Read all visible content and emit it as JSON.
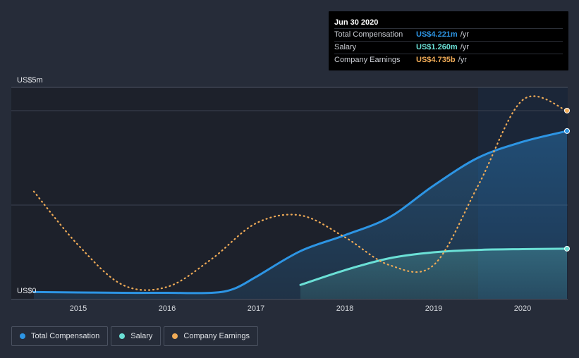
{
  "colors": {
    "background": "#262c39",
    "plot_dark": "#1d212b",
    "highlight": "#1b2638",
    "total_comp": "#2d95e4",
    "salary": "#6be0d6",
    "earnings": "#f0ab57",
    "grid": "#3a4150"
  },
  "tooltip": {
    "date": "Jun 30 2020",
    "rows": [
      {
        "label": "Total Compensation",
        "value": "US$4.221m",
        "unit": "/yr",
        "color": "#2d95e4"
      },
      {
        "label": "Salary",
        "value": "US$1.260m",
        "unit": "/yr",
        "color": "#6be0d6"
      },
      {
        "label": "Company Earnings",
        "value": "US$4.735b",
        "unit": "/yr",
        "color": "#f0ab57"
      }
    ]
  },
  "legend": [
    {
      "label": "Total Compensation",
      "color": "#2d95e4",
      "icon": "dot"
    },
    {
      "label": "Salary",
      "color": "#6be0d6",
      "icon": "dot"
    },
    {
      "label": "Company Earnings",
      "color": "#f0ab57",
      "icon": "dot"
    }
  ],
  "chart_data": {
    "type": "area",
    "y_top_label": "US$5m",
    "y_bottom_label": "US$0",
    "ylim": [
      0,
      5
    ],
    "xlim": [
      2014.5,
      2020.5
    ],
    "x_ticks": [
      2015,
      2016,
      2017,
      2018,
      2019,
      2020
    ],
    "x_tick_labels": [
      "2015",
      "2016",
      "2017",
      "2018",
      "2019",
      "2020"
    ],
    "grid": true,
    "legend_position": "bottom-left",
    "series": [
      {
        "name": "Total Compensation",
        "unit": "US$m",
        "style": "solid-area",
        "points": [
          [
            2014.5,
            0.17
          ],
          [
            2015.0,
            0.16
          ],
          [
            2015.5,
            0.15
          ],
          [
            2016.0,
            0.15
          ],
          [
            2016.5,
            0.15
          ],
          [
            2016.75,
            0.25
          ],
          [
            2017.0,
            0.55
          ],
          [
            2017.5,
            1.2
          ],
          [
            2018.0,
            1.6
          ],
          [
            2018.5,
            2.05
          ],
          [
            2019.0,
            2.85
          ],
          [
            2019.5,
            3.55
          ],
          [
            2020.0,
            3.95
          ],
          [
            2020.5,
            4.221
          ]
        ]
      },
      {
        "name": "Salary",
        "unit": "US$m",
        "style": "solid-area",
        "points": [
          [
            2017.5,
            0.35
          ],
          [
            2018.0,
            0.72
          ],
          [
            2018.5,
            1.02
          ],
          [
            2019.0,
            1.17
          ],
          [
            2019.5,
            1.23
          ],
          [
            2020.0,
            1.25
          ],
          [
            2020.5,
            1.26
          ]
        ]
      },
      {
        "name": "Company Earnings",
        "unit": "US$b",
        "style": "dotted",
        "points": [
          [
            2014.5,
            2.7
          ],
          [
            2015.0,
            1.35
          ],
          [
            2015.5,
            0.35
          ],
          [
            2016.0,
            0.3
          ],
          [
            2016.5,
            1.0
          ],
          [
            2017.0,
            1.9
          ],
          [
            2017.5,
            2.1
          ],
          [
            2018.0,
            1.55
          ],
          [
            2018.5,
            0.85
          ],
          [
            2019.0,
            0.85
          ],
          [
            2019.5,
            2.85
          ],
          [
            2020.0,
            5.0
          ],
          [
            2020.5,
            4.735
          ]
        ]
      }
    ]
  }
}
